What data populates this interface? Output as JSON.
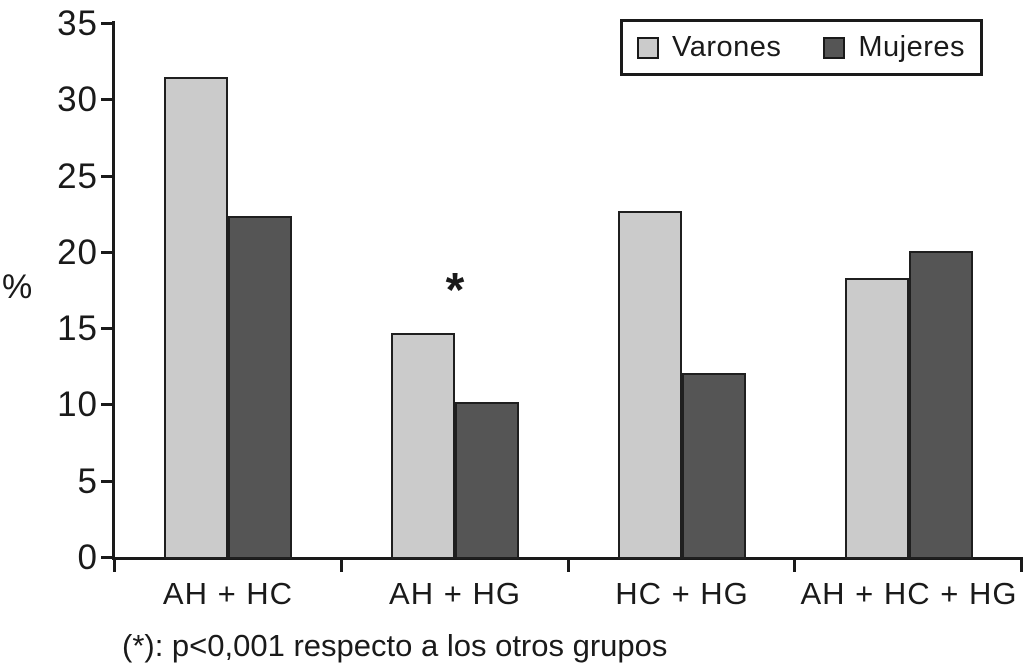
{
  "figure": {
    "background": "#ffffff",
    "text_color": "#1a1a1a",
    "footnote": "(*): p<0,001 respecto a los otros grupos"
  },
  "chart_data": {
    "type": "bar",
    "title": "",
    "xlabel": "",
    "ylabel": "%",
    "categories": [
      "AH + HC",
      "AH + HG",
      "HC + HG",
      "AH + HC + HG"
    ],
    "series": [
      {
        "name": "Varones",
        "color": "#cbcbcb",
        "values": [
          31.6,
          14.8,
          22.8,
          18.4
        ]
      },
      {
        "name": "Mujeres",
        "color": "#555555",
        "values": [
          22.5,
          10.3,
          12.2,
          20.2
        ]
      }
    ],
    "ylim": [
      0,
      35
    ],
    "ytick_step": 5,
    "yticks": [
      0,
      5,
      10,
      15,
      20,
      25,
      30,
      35
    ],
    "grid": false,
    "legend_position": "top-right",
    "bar_border_color": "#1f1f1f",
    "axis_color": "#1a1a1a",
    "annotations": [
      {
        "text": "*",
        "category": "AH + HG",
        "category_index": 1,
        "series": "Varones"
      }
    ]
  }
}
